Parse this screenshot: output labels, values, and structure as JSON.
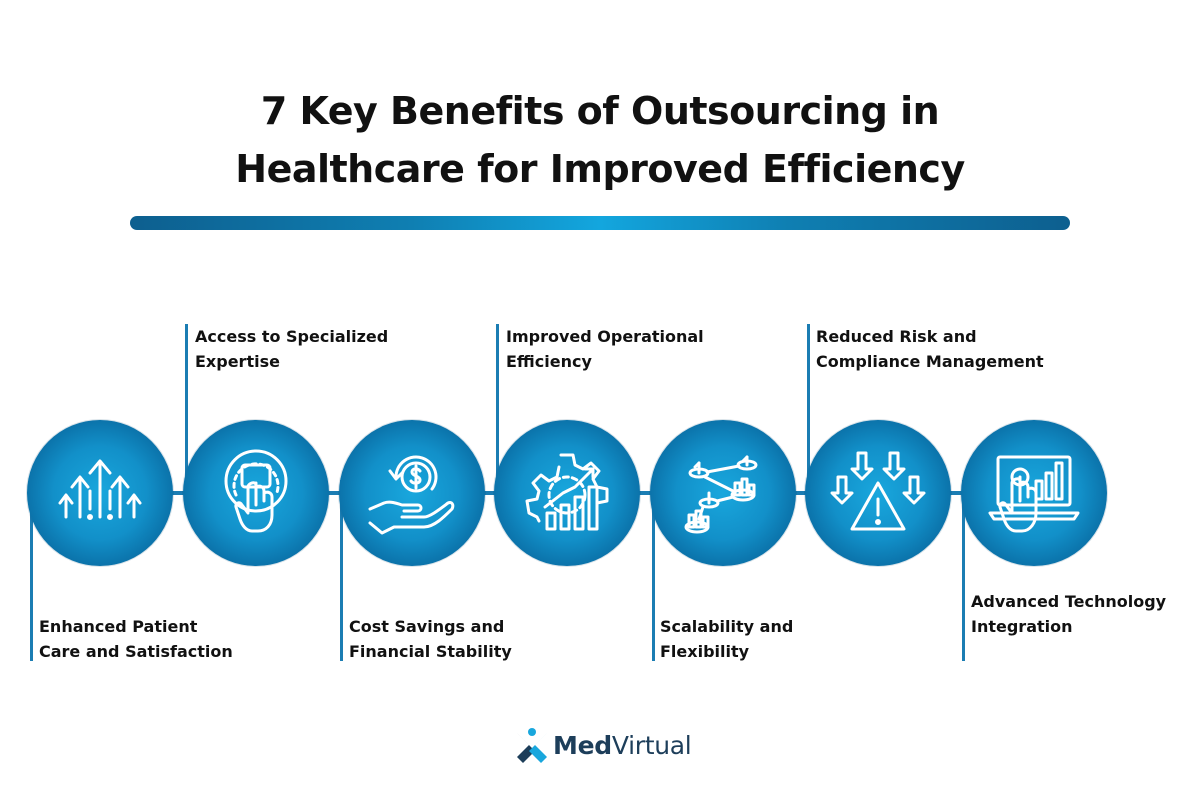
{
  "title": {
    "line1": "7 Key Benefits of Outsourcing in",
    "line2": "Healthcare for Improved Efficiency"
  },
  "colors": {
    "accent_dark": "#065887",
    "accent": "#1290c9",
    "accent_light": "#19a7dd",
    "line": "#1b7db3"
  },
  "benefits": [
    {
      "line1": "Enhanced Patient",
      "line2": "Care and Satisfaction",
      "icon": "upward-arrows-exclamation-icon"
    },
    {
      "line1": "Access to Specialized",
      "line2": "Expertise",
      "icon": "hand-touch-button-icon"
    },
    {
      "line1": "Cost Savings and",
      "line2": "Financial Stability",
      "icon": "hand-dollar-coin-icon"
    },
    {
      "line1": "Improved Operational",
      "line2": "Efficiency",
      "icon": "gear-bar-chart-icon"
    },
    {
      "line1": "Scalability and",
      "line2": "Flexibility",
      "icon": "connected-nodes-icon"
    },
    {
      "line1": "Reduced Risk and",
      "line2": "Compliance Management",
      "icon": "warning-triangle-arrows-icon"
    },
    {
      "line1": "Advanced Technology",
      "line2": "Integration",
      "icon": "laptop-chart-hand-icon"
    }
  ],
  "logo": {
    "text_bold": "Med",
    "text_regular": "Virtual",
    "icon": "medvirtual-logo-icon"
  }
}
